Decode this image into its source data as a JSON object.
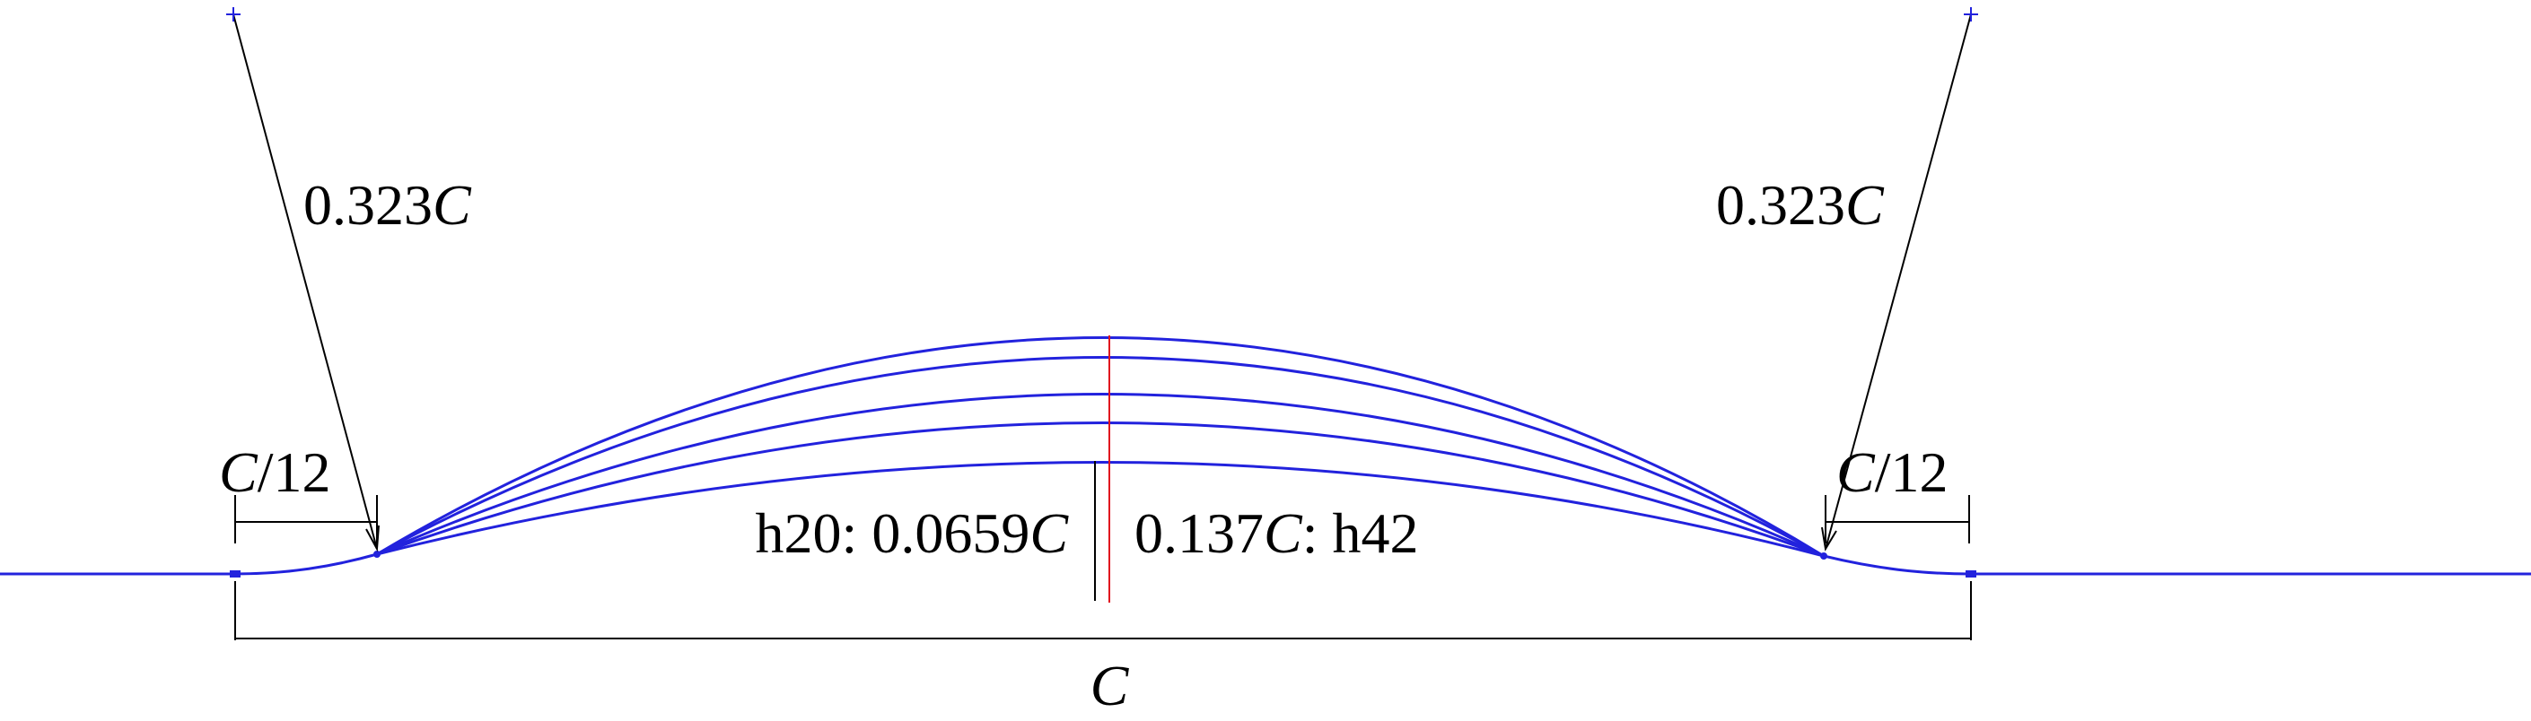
{
  "diagram": {
    "labels": {
      "radius_left": {
        "value": "0.323",
        "var": "C"
      },
      "radius_right": {
        "value": "0.323",
        "var": "C"
      },
      "transition_left": {
        "var": "C",
        "suffix": "/12"
      },
      "transition_right": {
        "var": "C",
        "suffix": "/12"
      },
      "height_low": {
        "prefix": "h20: 0.0659",
        "var": "C"
      },
      "height_high": {
        "value": "0.137",
        "var": "C",
        "suffix": ": h42"
      },
      "chord": {
        "var": "C"
      }
    },
    "colors": {
      "profile": "#2222dd",
      "centerline": "#e0101e",
      "dimension": "#000000"
    }
  }
}
